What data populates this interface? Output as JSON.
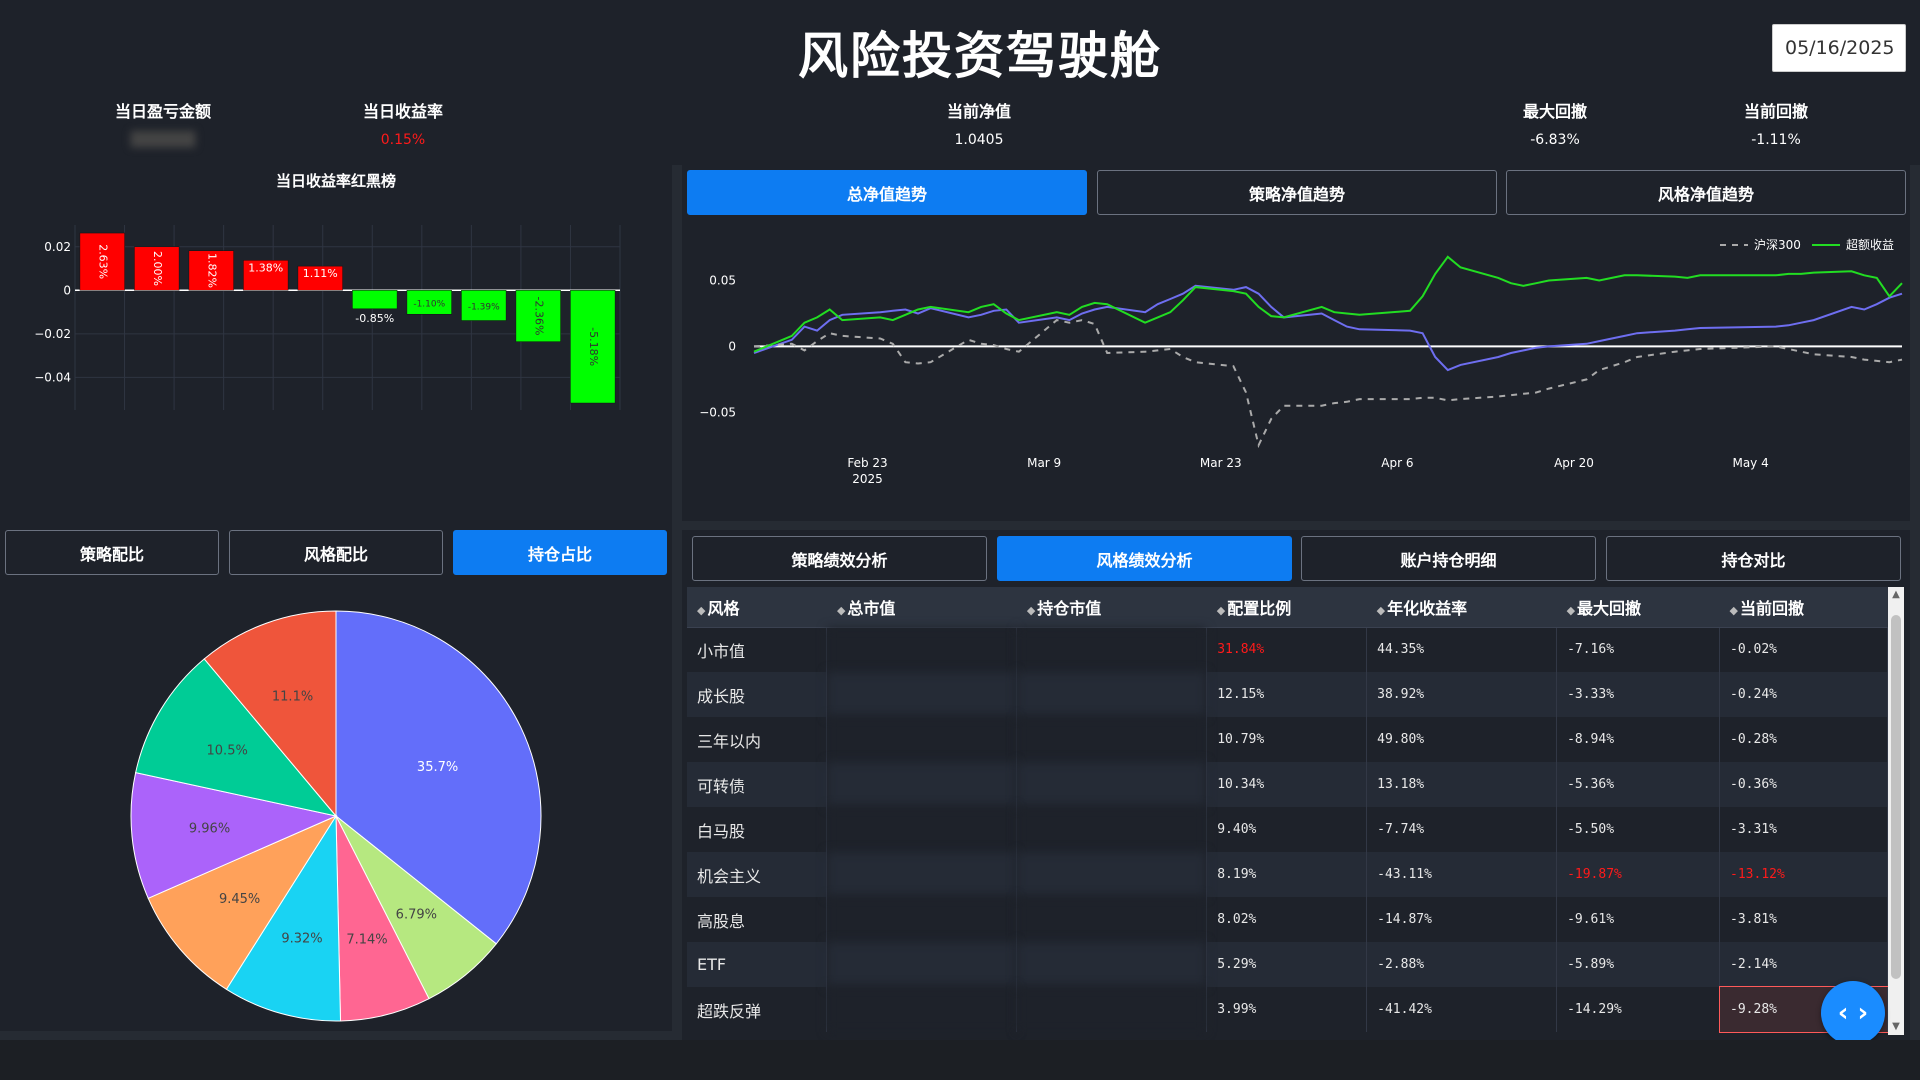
{
  "header": {
    "title": "风险投资驾驶舱",
    "date": "05/16/2025"
  },
  "kpis": {
    "daily_pnl": {
      "label": "当日盈亏金额",
      "value": ""
    },
    "daily_return": {
      "label": "当日收益率",
      "value": "0.15%"
    },
    "nav": {
      "label": "当前净值",
      "value": "1.0405"
    },
    "max_drawdown": {
      "label": "最大回撤",
      "value": "-6.83%"
    },
    "current_drawdown": {
      "label": "当前回撤",
      "value": "-1.11%"
    }
  },
  "ranking": {
    "title": "当日收益率红黑榜",
    "y_ticks": [
      "0.02",
      "0",
      "−0.02",
      "−0.04"
    ]
  },
  "left_tabs": [
    "策略配比",
    "风格配比",
    "持仓占比"
  ],
  "nav_tabs": [
    "总净值趋势",
    "策略净值趋势",
    "风格净值趋势"
  ],
  "nav_chart": {
    "y_ticks": [
      "0.05",
      "0",
      "−0.05"
    ],
    "x_ticks": [
      "Feb 23",
      "Mar 9",
      "Mar 23",
      "Apr 6",
      "Apr 20",
      "May 4"
    ],
    "x_year": "2025",
    "legend": [
      "沪深300",
      "超额收益"
    ]
  },
  "perf_tabs": [
    "策略绩效分析",
    "风格绩效分析",
    "账户持仓明细",
    "持仓对比"
  ],
  "table": {
    "columns": [
      "风格",
      "总市值",
      "持仓市值",
      "配置比例",
      "年化收益率",
      "最大回撤",
      "当前回撤"
    ],
    "rows": [
      [
        "小市值",
        "",
        "",
        "31.84%",
        "44.35%",
        "-7.16%",
        "-0.02%"
      ],
      [
        "成长股",
        "",
        "",
        "12.15%",
        "38.92%",
        "-3.33%",
        "-0.24%"
      ],
      [
        "三年以内",
        "",
        "",
        "10.79%",
        "49.80%",
        "-8.94%",
        "-0.28%"
      ],
      [
        "可转债",
        "",
        "",
        "10.34%",
        "13.18%",
        "-5.36%",
        "-0.36%"
      ],
      [
        "白马股",
        "",
        "",
        "9.40%",
        "-7.74%",
        "-5.50%",
        "-3.31%"
      ],
      [
        "机会主义",
        "",
        "",
        "8.19%",
        "-43.11%",
        "-19.87%",
        "-13.12%"
      ],
      [
        "高股息",
        "",
        "",
        "8.02%",
        "-14.87%",
        "-9.61%",
        "-3.81%"
      ],
      [
        "ETF",
        "",
        "",
        "5.29%",
        "-2.88%",
        "-5.89%",
        "-2.14%"
      ],
      [
        "超跌反弹",
        "",
        "",
        "3.99%",
        "-41.42%",
        "-14.29%",
        "-9.28%"
      ]
    ]
  },
  "chart_data": [
    {
      "type": "bar",
      "values": [
        0.0263,
        0.02,
        0.0182,
        0.0138,
        0.0111,
        -0.0085,
        -0.011,
        -0.0139,
        -0.0236,
        -0.0518
      ],
      "labels": [
        "2.63%",
        "2.00%",
        "1.82%",
        "1.38%",
        "1.11%",
        "-0.85%",
        "-1.10%",
        "-1.39%",
        "-2.36%",
        "-5.18%"
      ],
      "ylim": [
        -0.055,
        0.03
      ]
    },
    {
      "type": "line",
      "x": [
        "2025-02-14",
        "2025-02-17",
        "2025-02-18",
        "2025-02-19",
        "2025-02-20",
        "2025-02-21",
        "2025-02-24",
        "2025-02-25",
        "2025-02-26",
        "2025-02-27",
        "2025-02-28",
        "2025-03-03",
        "2025-03-04",
        "2025-03-05",
        "2025-03-06",
        "2025-03-07",
        "2025-03-10",
        "2025-03-11",
        "2025-03-12",
        "2025-03-13",
        "2025-03-14",
        "2025-03-17",
        "2025-03-18",
        "2025-03-19",
        "2025-03-20",
        "2025-03-21",
        "2025-03-24",
        "2025-03-25",
        "2025-03-26",
        "2025-03-27",
        "2025-03-28",
        "2025-03-31",
        "2025-04-01",
        "2025-04-02",
        "2025-04-03",
        "2025-04-07",
        "2025-04-08",
        "2025-04-09",
        "2025-04-10",
        "2025-04-11",
        "2025-04-14",
        "2025-04-15",
        "2025-04-16",
        "2025-04-17",
        "2025-04-18",
        "2025-04-21",
        "2025-04-22",
        "2025-04-23",
        "2025-04-24",
        "2025-04-25",
        "2025-04-28",
        "2025-04-29",
        "2025-04-30",
        "2025-05-06",
        "2025-05-07",
        "2025-05-08",
        "2025-05-09",
        "2025-05-12",
        "2025-05-13",
        "2025-05-14",
        "2025-05-15",
        "2025-05-16"
      ],
      "series": [
        {
          "name": "",
          "color": "#6e6ef0",
          "dash": "solid",
          "values": [
            -0.005,
            0.005,
            0.015,
            0.012,
            0.02,
            0.024,
            0.026,
            0.027,
            0.028,
            0.025,
            0.029,
            0.022,
            0.024,
            0.027,
            0.028,
            0.018,
            0.022,
            0.02,
            0.025,
            0.028,
            0.03,
            0.026,
            0.032,
            0.036,
            0.04,
            0.046,
            0.043,
            0.045,
            0.04,
            0.03,
            0.022,
            0.025,
            0.02,
            0.015,
            0.013,
            0.012,
            0.01,
            -0.008,
            -0.018,
            -0.014,
            -0.008,
            -0.005,
            -0.003,
            -0.001,
            0.0,
            0.002,
            0.004,
            0.006,
            0.008,
            0.01,
            0.012,
            0.013,
            0.014,
            0.015,
            0.016,
            0.018,
            0.02,
            0.03,
            0.028,
            0.032,
            0.037,
            0.04
          ]
        },
        {
          "name": "沪深300",
          "color": "#aaaaaa",
          "dash": "dashed",
          "values": [
            0.0,
            0.002,
            -0.003,
            0.004,
            0.01,
            0.008,
            0.006,
            0.002,
            -0.012,
            -0.013,
            -0.012,
            0.005,
            0.002,
            0.001,
            -0.002,
            -0.004,
            0.02,
            0.018,
            0.02,
            0.017,
            -0.005,
            -0.004,
            -0.003,
            -0.002,
            -0.008,
            -0.012,
            -0.015,
            -0.035,
            -0.075,
            -0.055,
            -0.045,
            -0.045,
            -0.043,
            -0.042,
            -0.04,
            -0.04,
            -0.039,
            -0.039,
            -0.041,
            -0.04,
            -0.038,
            -0.037,
            -0.036,
            -0.035,
            -0.032,
            -0.025,
            -0.018,
            -0.015,
            -0.012,
            -0.008,
            -0.004,
            -0.003,
            -0.002,
            0.0,
            -0.002,
            -0.004,
            -0.006,
            -0.008,
            -0.01,
            -0.011,
            -0.012,
            -0.01
          ]
        },
        {
          "name": "超额收益",
          "color": "#22dd22",
          "dash": "solid",
          "values": [
            -0.004,
            0.008,
            0.018,
            0.022,
            0.028,
            0.02,
            0.022,
            0.02,
            0.024,
            0.028,
            0.03,
            0.026,
            0.03,
            0.032,
            0.025,
            0.02,
            0.026,
            0.024,
            0.03,
            0.033,
            0.032,
            0.018,
            0.022,
            0.026,
            0.035,
            0.045,
            0.042,
            0.04,
            0.03,
            0.023,
            0.022,
            0.03,
            0.026,
            0.025,
            0.024,
            0.027,
            0.038,
            0.055,
            0.068,
            0.06,
            0.052,
            0.048,
            0.046,
            0.048,
            0.05,
            0.052,
            0.05,
            0.052,
            0.054,
            0.054,
            0.053,
            0.052,
            0.054,
            0.054,
            0.055,
            0.055,
            0.056,
            0.057,
            0.054,
            0.052,
            0.038,
            0.048
          ]
        }
      ],
      "ylim": [
        -0.09,
        0.08
      ]
    },
    {
      "type": "pie",
      "values": [
        35.7,
        6.79,
        7.14,
        9.32,
        9.45,
        9.96,
        10.5,
        11.1
      ],
      "labels": [
        "35.7%",
        "6.79%",
        "7.14%",
        "9.32%",
        "9.45%",
        "9.96%",
        "10.5%",
        "11.1%"
      ],
      "colors": [
        "#636efa",
        "#b6e880",
        "#ff6692",
        "#19d3f3",
        "#ffa15a",
        "#ab63fa",
        "#00cc96",
        "#ef553b"
      ]
    }
  ]
}
